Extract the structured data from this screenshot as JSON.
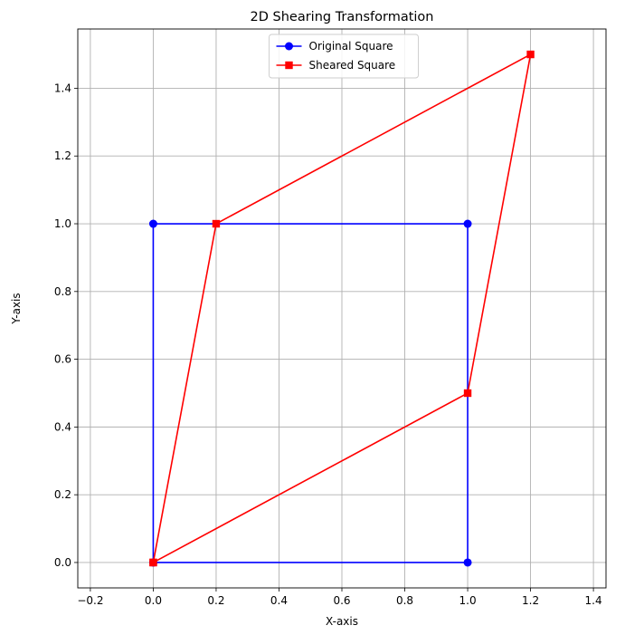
{
  "chart_data": {
    "type": "line",
    "title": "2D Shearing Transformation",
    "xlabel": "X-axis",
    "ylabel": "Y-axis",
    "xlim": [
      -0.24,
      1.44
    ],
    "ylim": [
      -0.075,
      1.575
    ],
    "xticks": [
      -0.2,
      0.0,
      0.2,
      0.4,
      0.6,
      0.8,
      1.0,
      1.2,
      1.4
    ],
    "xtick_labels": [
      "−0.2",
      "0.0",
      "0.2",
      "0.4",
      "0.6",
      "0.8",
      "1.0",
      "1.2",
      "1.4"
    ],
    "yticks": [
      0.0,
      0.2,
      0.4,
      0.6,
      0.8,
      1.0,
      1.2,
      1.4
    ],
    "ytick_labels": [
      "0.0",
      "0.2",
      "0.4",
      "0.6",
      "0.8",
      "1.0",
      "1.2",
      "1.4"
    ],
    "grid": true,
    "legend_position": "top-center",
    "series": [
      {
        "name": "Original Square",
        "color": "#0000ff",
        "marker": "circle",
        "x": [
          0,
          1,
          1,
          0,
          0
        ],
        "y": [
          0,
          0,
          1,
          1,
          0
        ]
      },
      {
        "name": "Sheared Square",
        "color": "#ff0000",
        "marker": "square",
        "x": [
          0,
          1,
          1.2,
          0.2,
          0
        ],
        "y": [
          0,
          0.5,
          1.5,
          1,
          0
        ]
      }
    ]
  }
}
